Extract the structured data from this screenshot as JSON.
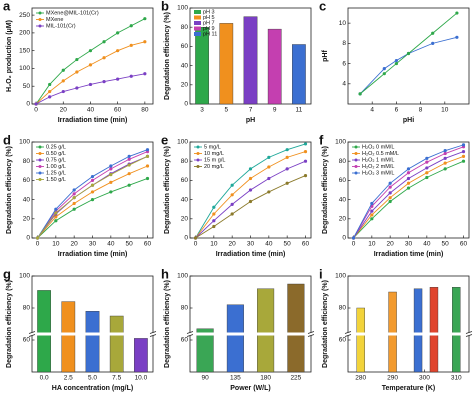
{
  "chart_data": [
    {
      "type": "line",
      "label": "a",
      "xlabel": "Irradiation time (min)",
      "ylabel": "H₂O₂ production (μM)",
      "x": [
        0,
        10,
        20,
        30,
        40,
        50,
        60,
        70,
        80
      ],
      "xlim": [
        -3,
        86
      ],
      "xticks": [
        0,
        20,
        40,
        60,
        80
      ],
      "ylim": [
        0,
        270
      ],
      "yticks": [
        0,
        50,
        100,
        150,
        200,
        250
      ],
      "series": [
        {
          "name": "MXene@MIL-101(Cr)",
          "color": "#2ea84a",
          "values": [
            0,
            55,
            95,
            125,
            150,
            175,
            200,
            220,
            240
          ]
        },
        {
          "name": "MXene",
          "color": "#f0901e",
          "values": [
            0,
            35,
            65,
            90,
            110,
            130,
            150,
            165,
            175
          ]
        },
        {
          "name": "MIL-101(Cr)",
          "color": "#7a3fc4",
          "values": [
            0,
            20,
            35,
            45,
            55,
            63,
            70,
            78,
            85
          ]
        }
      ]
    },
    {
      "type": "bar",
      "label": "b",
      "xlabel": "pH",
      "ylabel": "Degradation efficiency (%)",
      "categories": [
        "3",
        "5",
        "7",
        "9",
        "11"
      ],
      "values": [
        80,
        84,
        91,
        78,
        62
      ],
      "colors": [
        "#2ea84a",
        "#f0901e",
        "#7a3fc4",
        "#c43fb0",
        "#3b6fd1"
      ],
      "legend": [
        "pH 3",
        "pH 5",
        "pH 7",
        "pH 9",
        "pH 11"
      ],
      "ylim": [
        0,
        100
      ],
      "yticks": [
        0,
        20,
        40,
        60,
        80,
        100
      ]
    },
    {
      "type": "line",
      "label": "c",
      "xlabel": "pHi",
      "ylabel": "pHf",
      "x": [
        3,
        5,
        6,
        7,
        9,
        11
      ],
      "xlim": [
        2,
        12
      ],
      "xticks": [
        4,
        6,
        8,
        10
      ],
      "ylim": [
        2,
        11.5
      ],
      "yticks": [
        4,
        6,
        8,
        10
      ],
      "series": [
        {
          "color": "#3b6fd1",
          "values": [
            3,
            5.5,
            6.3,
            7,
            8,
            8.6
          ]
        },
        {
          "color": "#2ea84a",
          "values": [
            3,
            5,
            6,
            7,
            9,
            11
          ]
        }
      ]
    },
    {
      "type": "line",
      "label": "d",
      "xlabel": "Irradiation time (min)",
      "ylabel": "Degradation efficiency (%)",
      "x": [
        0,
        10,
        20,
        30,
        40,
        50,
        60
      ],
      "xlim": [
        -3,
        63
      ],
      "xticks": [
        0,
        10,
        20,
        30,
        40,
        50,
        60
      ],
      "ylim": [
        0,
        100
      ],
      "yticks": [
        0,
        20,
        40,
        60,
        80,
        100
      ],
      "series": [
        {
          "name": "0.25 g/L",
          "color": "#2ea84a",
          "values": [
            0,
            18,
            30,
            40,
            48,
            55,
            62
          ]
        },
        {
          "name": "0.50 g/L",
          "color": "#f0901e",
          "values": [
            0,
            22,
            36,
            48,
            58,
            67,
            75
          ]
        },
        {
          "name": "0.75 g/L",
          "color": "#7a3fc4",
          "values": [
            0,
            25,
            42,
            55,
            67,
            77,
            85
          ]
        },
        {
          "name": "1.00 g/L",
          "color": "#c43fb0",
          "values": [
            0,
            28,
            46,
            60,
            72,
            82,
            90
          ]
        },
        {
          "name": "1.25 g/L",
          "color": "#3b6fd1",
          "values": [
            0,
            30,
            50,
            64,
            75,
            85,
            92
          ]
        },
        {
          "name": "1.50 g/L",
          "color": "#a8a83a",
          "values": [
            0,
            26,
            42,
            55,
            66,
            76,
            85
          ]
        }
      ]
    },
    {
      "type": "line",
      "label": "e",
      "xlabel": "Irradiation time (min)",
      "ylabel": "Degradation efficiency (%)",
      "x": [
        0,
        10,
        20,
        30,
        40,
        50,
        60
      ],
      "xlim": [
        -3,
        63
      ],
      "xticks": [
        0,
        10,
        20,
        30,
        40,
        50,
        60
      ],
      "ylim": [
        0,
        100
      ],
      "yticks": [
        0,
        20,
        40,
        60,
        80,
        100
      ],
      "series": [
        {
          "name": "5 mg/L",
          "color": "#1fa89a",
          "values": [
            0,
            32,
            55,
            72,
            84,
            92,
            98
          ]
        },
        {
          "name": "10 mg/L",
          "color": "#f0901e",
          "values": [
            0,
            25,
            45,
            62,
            74,
            84,
            90
          ]
        },
        {
          "name": "15 m g/L",
          "color": "#7a3fc4",
          "values": [
            0,
            18,
            35,
            50,
            62,
            72,
            80
          ]
        },
        {
          "name": "20 mg/L",
          "color": "#8b7a2b",
          "values": [
            0,
            12,
            25,
            38,
            48,
            57,
            65
          ]
        }
      ]
    },
    {
      "type": "line",
      "label": "f",
      "xlabel": "Irradiation time (min)",
      "ylabel": "Degradation efficiency (%)",
      "x": [
        0,
        10,
        20,
        30,
        40,
        50,
        60
      ],
      "xlim": [
        -3,
        63
      ],
      "xticks": [
        0,
        10,
        20,
        30,
        40,
        50,
        60
      ],
      "ylim": [
        0,
        100
      ],
      "yticks": [
        0,
        20,
        40,
        60,
        80,
        100
      ],
      "series": [
        {
          "name": "H₂O₂ 0 mM/L",
          "color": "#2ea84a",
          "values": [
            0,
            20,
            38,
            52,
            63,
            72,
            80
          ]
        },
        {
          "name": "H₂O₂ 0.5 mM/L",
          "color": "#f0901e",
          "values": [
            0,
            24,
            42,
            57,
            68,
            78,
            85
          ]
        },
        {
          "name": "H₂O₂ 1 mM/L",
          "color": "#7a3fc4",
          "values": [
            0,
            28,
            47,
            62,
            73,
            83,
            90
          ]
        },
        {
          "name": "H₂O₂ 2 mM/L",
          "color": "#c43fb0",
          "values": [
            0,
            33,
            53,
            68,
            79,
            88,
            95
          ]
        },
        {
          "name": "H₂O₂ 3 mM/L",
          "color": "#3b6fd1",
          "values": [
            0,
            36,
            57,
            72,
            83,
            91,
            97
          ]
        }
      ]
    },
    {
      "type": "bar",
      "label": "g",
      "xlabel": "HA concentration (mg/L)",
      "ylabel": "Degradation efficiency (%)",
      "categories": [
        "0.0",
        "2.5",
        "5.0",
        "7.5",
        "10.0"
      ],
      "values": [
        91,
        84,
        78,
        75,
        61
      ],
      "colors": [
        "#2ea84a",
        "#f0901e",
        "#3b6fd1",
        "#a8a83a",
        "#7a3fc4"
      ],
      "ylim": [
        40,
        100
      ],
      "yticks": [
        60,
        80,
        100
      ],
      "axis_break": true
    },
    {
      "type": "bar",
      "label": "h",
      "xlabel": "Power (W/L)",
      "ylabel": "Degradation efficiency (%)",
      "categories": [
        "90",
        "135",
        "180",
        "225"
      ],
      "values": [
        67,
        82,
        92,
        95
      ],
      "colors": [
        "#3aa655",
        "#3b6fd1",
        "#a8a83a",
        "#8b6a2b"
      ],
      "ylim": [
        40,
        100
      ],
      "yticks": [
        60,
        80,
        100
      ],
      "axis_break": true
    },
    {
      "type": "bar",
      "label": "i",
      "xlabel": "Temperature (K)",
      "ylabel": "Degradation efficiency (%)",
      "x": [
        280,
        290,
        298,
        303,
        310
      ],
      "xlim": [
        276,
        314
      ],
      "xticks": [
        280,
        290,
        300,
        310
      ],
      "values": [
        80,
        90,
        92,
        93,
        93
      ],
      "colors": [
        "#f2d33a",
        "#f29a2e",
        "#3b6fd1",
        "#e0452e",
        "#3aa655"
      ],
      "ylim": [
        40,
        100
      ],
      "yticks": [
        60,
        80,
        100
      ],
      "axis_break": true
    }
  ]
}
